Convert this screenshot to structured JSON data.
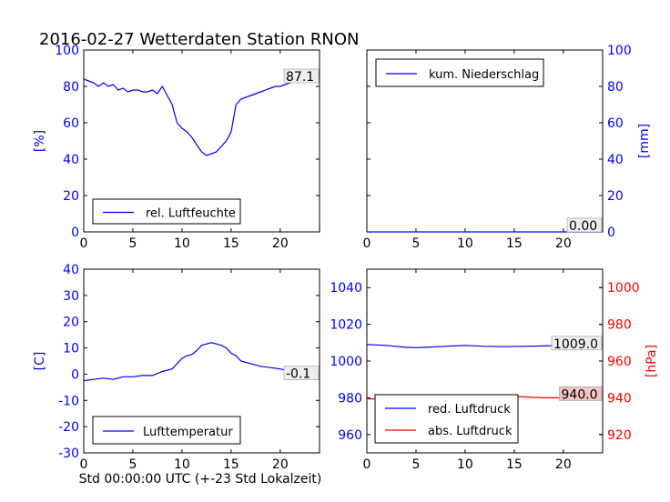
{
  "title": "2016-02-27 Wetterdaten Station RNON",
  "xlabel": "Std 00:00:00 UTC (+-23 Std Lokalzeit)",
  "colors": {
    "blue": "#0000ff",
    "red": "#ff0000",
    "annot_bg": "#eeeeee",
    "annot_red_bg": "#f2c4c4"
  },
  "chart_data": [
    {
      "id": "humidity",
      "type": "line",
      "ylabel": "[%]",
      "xlim": [
        0,
        24
      ],
      "ylim": [
        0,
        100
      ],
      "xticks": [
        0,
        5,
        10,
        15,
        20
      ],
      "yticks": [
        0,
        20,
        40,
        60,
        80,
        100
      ],
      "legend": {
        "label": "rel. Luftfeuchte",
        "placement": "lower-left"
      },
      "annotation": "87.1",
      "series": [
        {
          "name": "rel. Luftfeuchte",
          "color": "#0000ff",
          "x": [
            0,
            0.5,
            1,
            1.5,
            2,
            2.5,
            3,
            3.5,
            4,
            4.5,
            5,
            5.5,
            6,
            6.5,
            7,
            7.5,
            8,
            8.5,
            9,
            9.5,
            10,
            10.5,
            11,
            11.5,
            12,
            12.5,
            13,
            13.5,
            14,
            14.5,
            15,
            15.5,
            16,
            16.5,
            17,
            17.5,
            18,
            18.5,
            19,
            19.5,
            20,
            20.5,
            21,
            21.5,
            22,
            22.5,
            23,
            23.5,
            24
          ],
          "values": [
            84,
            83,
            82,
            80,
            82,
            80,
            81,
            78,
            79,
            77,
            78,
            78,
            77,
            77,
            78,
            76,
            80,
            75,
            70,
            60,
            57,
            55,
            52,
            48,
            44,
            42,
            43,
            44,
            47,
            50,
            55,
            70,
            73,
            74,
            75,
            76,
            77,
            78,
            79,
            80,
            80,
            81,
            82,
            83,
            84,
            85,
            86,
            87,
            87
          ]
        }
      ]
    },
    {
      "id": "precipitation",
      "type": "line",
      "ylabel": "[mm]",
      "xlim": [
        0,
        24
      ],
      "ylim": [
        0,
        100
      ],
      "xticks": [
        0,
        5,
        10,
        15,
        20
      ],
      "yticks": [
        0,
        20,
        40,
        60,
        80,
        100
      ],
      "legend": {
        "label": "kum. Niederschlag",
        "placement": "upper-left"
      },
      "annotation": "0.00",
      "series": [
        {
          "name": "kum. Niederschlag",
          "color": "#0000ff",
          "x": [
            0,
            24
          ],
          "values": [
            0,
            0
          ]
        }
      ]
    },
    {
      "id": "temperature",
      "type": "line",
      "ylabel": "[C]",
      "xlim": [
        0,
        24
      ],
      "ylim": [
        -30,
        40
      ],
      "xticks": [
        0,
        5,
        10,
        15,
        20
      ],
      "yticks": [
        -30,
        -20,
        -10,
        0,
        10,
        20,
        30,
        40
      ],
      "legend": {
        "label": "Lufttemperatur",
        "placement": "lower-left"
      },
      "annotation": "-0.1",
      "series": [
        {
          "name": "Lufttemperatur",
          "color": "#0000ff",
          "x": [
            0,
            1,
            2,
            3,
            4,
            5,
            6,
            7,
            8,
            9,
            10,
            10.5,
            11,
            11.5,
            12,
            12.5,
            13,
            13.5,
            14,
            14.5,
            15,
            15.5,
            16,
            17,
            18,
            19,
            20,
            21,
            22,
            23,
            24
          ],
          "values": [
            -2.5,
            -2,
            -1.5,
            -2,
            -1,
            -1,
            -0.5,
            -0.5,
            1,
            2,
            6,
            7,
            7.5,
            9,
            11,
            11.5,
            12,
            11.5,
            11,
            10,
            8,
            7,
            5,
            4,
            3,
            2.5,
            2,
            1,
            0.5,
            0,
            -0.1
          ]
        }
      ]
    },
    {
      "id": "pressure",
      "type": "line",
      "ylabel": "",
      "ylabel_right": "[hPa]",
      "xlim": [
        0,
        24
      ],
      "ylim": [
        950,
        1050
      ],
      "ylim_right": [
        910,
        1010
      ],
      "xticks": [
        0,
        5,
        10,
        15,
        20
      ],
      "yticks": [
        960,
        980,
        1000,
        1020,
        1040
      ],
      "yticks_right": [
        920,
        940,
        960,
        980,
        1000
      ],
      "legend": {
        "label": "red. Luftdruck",
        "label2": "abs. Luftdruck",
        "placement": "lower-left"
      },
      "annotation": "1009.0",
      "annotation_right": "940.0",
      "series": [
        {
          "name": "red. Luftdruck",
          "color": "#0000ff",
          "axis": "left",
          "x": [
            0,
            2,
            4,
            5,
            6,
            8,
            10,
            12,
            14,
            16,
            18,
            20,
            22,
            24
          ],
          "values": [
            1009,
            1008.5,
            1007.5,
            1007.3,
            1007.5,
            1008,
            1008.5,
            1008,
            1007.8,
            1008,
            1008.2,
            1008.5,
            1008.8,
            1009
          ]
        },
        {
          "name": "abs. Luftdruck",
          "color": "#ff0000",
          "axis": "right",
          "x": [
            0,
            2,
            4,
            5,
            6,
            8,
            10,
            12,
            13,
            14,
            16,
            18,
            20,
            22,
            24
          ],
          "values": [
            939.5,
            939,
            938,
            938,
            938.2,
            939,
            940.5,
            941,
            941.2,
            941,
            940.5,
            940,
            940,
            940,
            940
          ]
        }
      ]
    }
  ]
}
